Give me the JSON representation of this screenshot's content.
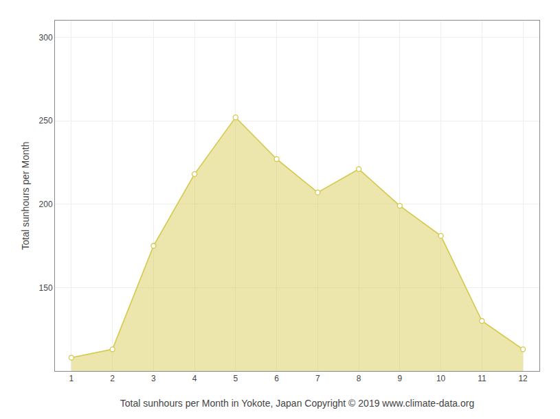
{
  "chart_data": {
    "type": "area",
    "xlabel": "Total sunhours per Month in Yokote, Japan Copyright © 2019 www.climate-data.org",
    "ylabel": "Total sunhours per Month",
    "x": [
      1,
      2,
      3,
      4,
      5,
      6,
      7,
      8,
      9,
      10,
      11,
      12
    ],
    "values": [
      108,
      113,
      175,
      218,
      252,
      227,
      207,
      221,
      199,
      181,
      130,
      113
    ],
    "color": "#d4c84a",
    "marker": "circle",
    "xlim": [
      0.6,
      12.4
    ],
    "xticks": [
      1,
      2,
      3,
      4,
      5,
      6,
      7,
      8,
      9,
      10,
      11,
      12
    ],
    "ylim": [
      100,
      310
    ],
    "yticks": [
      150,
      200,
      250,
      300
    ],
    "grid": true
  }
}
